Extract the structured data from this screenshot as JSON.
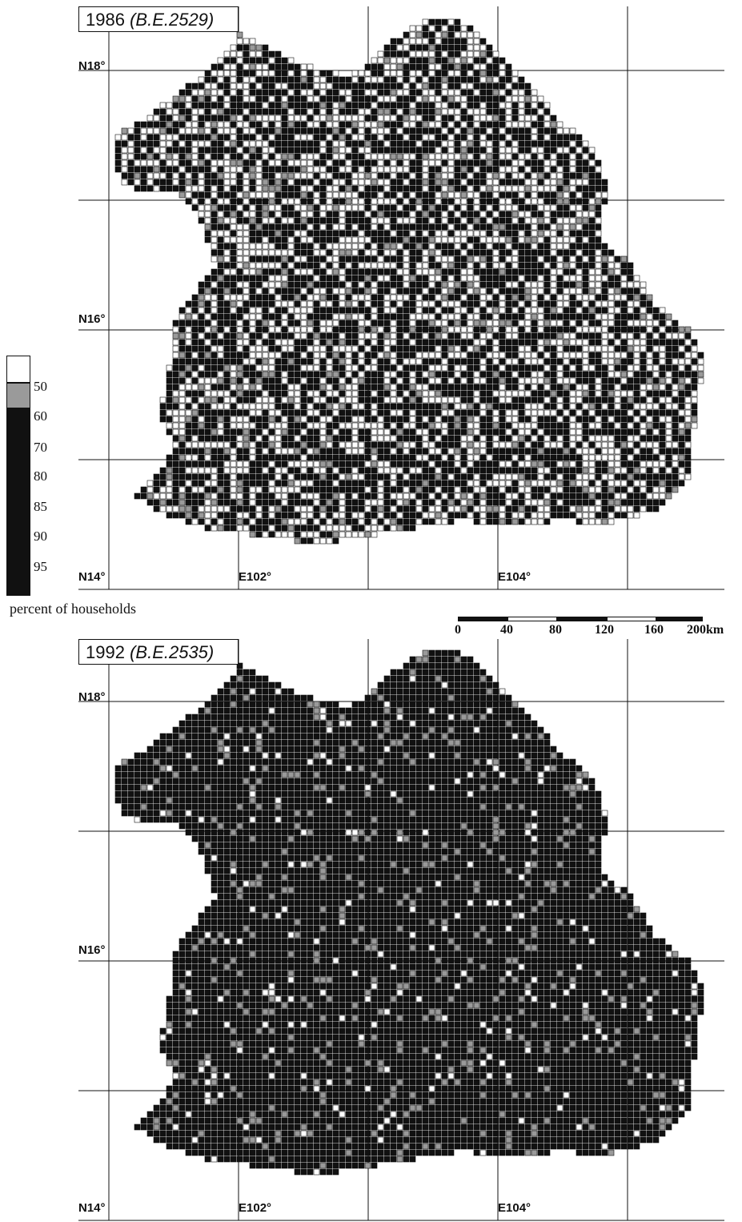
{
  "maps": [
    {
      "title_year": "1986",
      "title_era": "(B.E.2529)",
      "lat_labels": [
        "N18°",
        "N16°",
        "N14°"
      ],
      "lon_labels": [
        "E102°",
        "E104°"
      ]
    },
    {
      "title_year": "1992",
      "title_era": "(B.E.2535)",
      "lat_labels": [
        "N18°",
        "N16°",
        "N14°"
      ],
      "lon_labels": [
        "E102°",
        "E104°"
      ]
    }
  ],
  "legend": {
    "caption": "percent of households",
    "levels": [
      "50",
      "60",
      "70",
      "80",
      "85",
      "90",
      "95"
    ],
    "colors": [
      "#ffffff",
      "#9a9a9a",
      "#111111"
    ]
  },
  "scale_bar": {
    "ticks": [
      "0",
      "40",
      "80",
      "120",
      "160",
      "200km"
    ]
  }
}
